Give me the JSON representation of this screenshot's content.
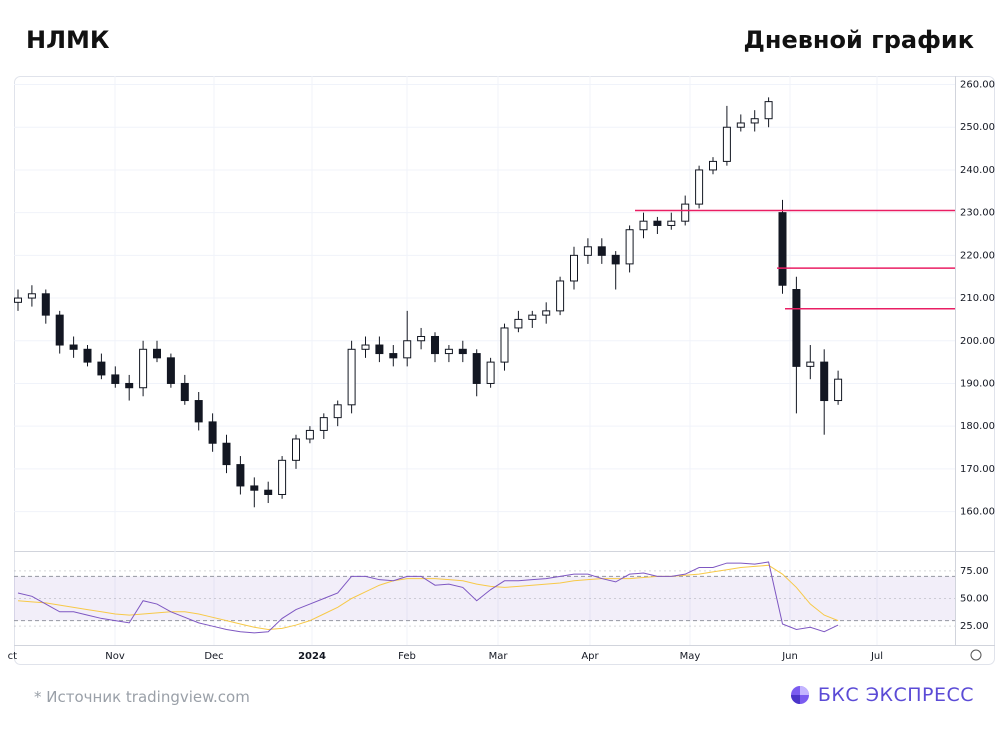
{
  "header": {
    "title": "НЛМК",
    "subtitle": "Дневной график"
  },
  "chart_data": {
    "type": "candlestick",
    "open": [
      209,
      210,
      211,
      206,
      199,
      198,
      195,
      192,
      190,
      189,
      198,
      196,
      190,
      186,
      181,
      176,
      171,
      166,
      165,
      164,
      172,
      177,
      179,
      182,
      185,
      198,
      199,
      197,
      196,
      200,
      201,
      197,
      198,
      197,
      190,
      195,
      203,
      205,
      206,
      207,
      214,
      220,
      222,
      220,
      218,
      226,
      228,
      227,
      228,
      232,
      240,
      242,
      250,
      251,
      252,
      230,
      212,
      194,
      195,
      186
    ],
    "high": [
      212,
      213,
      212,
      207,
      201,
      199,
      197,
      194,
      192,
      200,
      200,
      197,
      192,
      188,
      183,
      178,
      173,
      168,
      167,
      173,
      178,
      180,
      183,
      186,
      200,
      201,
      201,
      199,
      207,
      203,
      202,
      199,
      200,
      198,
      196,
      204,
      207,
      207,
      209,
      215,
      222,
      224,
      224,
      221,
      227,
      230,
      229,
      230,
      234,
      241,
      243,
      255,
      253,
      254,
      257,
      233,
      215,
      199,
      198,
      193
    ],
    "low": [
      207,
      208,
      204,
      197,
      196,
      194,
      191,
      189,
      186,
      187,
      195,
      189,
      185,
      179,
      174,
      169,
      164,
      161,
      162,
      163,
      170,
      176,
      177,
      180,
      183,
      196,
      195,
      194,
      194,
      198,
      195,
      195,
      195,
      187,
      189,
      193,
      202,
      203,
      204,
      206,
      212,
      218,
      218,
      212,
      216,
      224,
      225,
      226,
      227,
      231,
      239,
      241,
      249,
      249,
      250,
      211,
      183,
      191,
      178,
      185
    ],
    "close": [
      210,
      211,
      206,
      199,
      198,
      195,
      192,
      190,
      189,
      198,
      196,
      190,
      186,
      181,
      176,
      171,
      166,
      165,
      164,
      172,
      177,
      179,
      182,
      185,
      198,
      199,
      197,
      196,
      200,
      201,
      197,
      198,
      197,
      190,
      195,
      203,
      205,
      206,
      207,
      214,
      220,
      222,
      220,
      218,
      226,
      228,
      227,
      228,
      232,
      240,
      242,
      250,
      251,
      252,
      256,
      213,
      194,
      195,
      186,
      191
    ],
    "up_color": "#ffffff",
    "down_color": "#131722",
    "ylim": [
      151,
      262
    ],
    "yticks": [
      {
        "value": 160,
        "label": "160.00"
      },
      {
        "value": 170,
        "label": "170.00"
      },
      {
        "value": 180,
        "label": "180.00"
      },
      {
        "value": 190,
        "label": "190.00"
      },
      {
        "value": 200,
        "label": "200.00"
      },
      {
        "value": 210,
        "label": "210.00"
      },
      {
        "value": 220,
        "label": "220.00"
      },
      {
        "value": 230,
        "label": "230.00"
      },
      {
        "value": 240,
        "label": "240.00"
      },
      {
        "value": 250,
        "label": "250.00"
      },
      {
        "value": 260,
        "label": "260.00"
      }
    ],
    "xticks": [
      "ct",
      "Nov",
      "Dec",
      "2024",
      "Feb",
      "Mar",
      "Apr",
      "May",
      "Jun",
      "Jul"
    ],
    "grid": true,
    "levels": [
      230.5,
      217,
      207.5
    ],
    "level_color": "#e91e63",
    "rsi": {
      "values": [
        55,
        52,
        45,
        38,
        38,
        35,
        32,
        30,
        28,
        48,
        45,
        38,
        33,
        28,
        25,
        22,
        20,
        19,
        20,
        32,
        40,
        45,
        50,
        55,
        70,
        70,
        67,
        66,
        70,
        70,
        62,
        63,
        60,
        48,
        58,
        66,
        66,
        67,
        68,
        70,
        72,
        72,
        68,
        65,
        72,
        73,
        70,
        70,
        72,
        78,
        78,
        82,
        82,
        81,
        83,
        27,
        22,
        24,
        20,
        26
      ],
      "ma": [
        48,
        47,
        46,
        44,
        42,
        40,
        38,
        36,
        35,
        36,
        37,
        38,
        38,
        36,
        33,
        30,
        27,
        24,
        22,
        23,
        26,
        30,
        36,
        42,
        50,
        56,
        62,
        66,
        68,
        68,
        68,
        67,
        66,
        63,
        61,
        60,
        61,
        62,
        63,
        64,
        66,
        67,
        68,
        68,
        68,
        69,
        70,
        70,
        71,
        72,
        74,
        76,
        78,
        79,
        80,
        72,
        60,
        45,
        35,
        30
      ],
      "color": "#7e57c2",
      "ma_color": "#f7c948",
      "ylim": [
        8,
        92
      ],
      "yticks": [
        {
          "value": 25,
          "label": "25.00"
        },
        {
          "value": 50,
          "label": "50.00"
        },
        {
          "value": 75,
          "label": "75.00"
        }
      ],
      "band": [
        30,
        70
      ]
    }
  },
  "footer": {
    "source": "* Источник tradingview.com",
    "brand": "БКС ЭКСПРЕСС"
  }
}
